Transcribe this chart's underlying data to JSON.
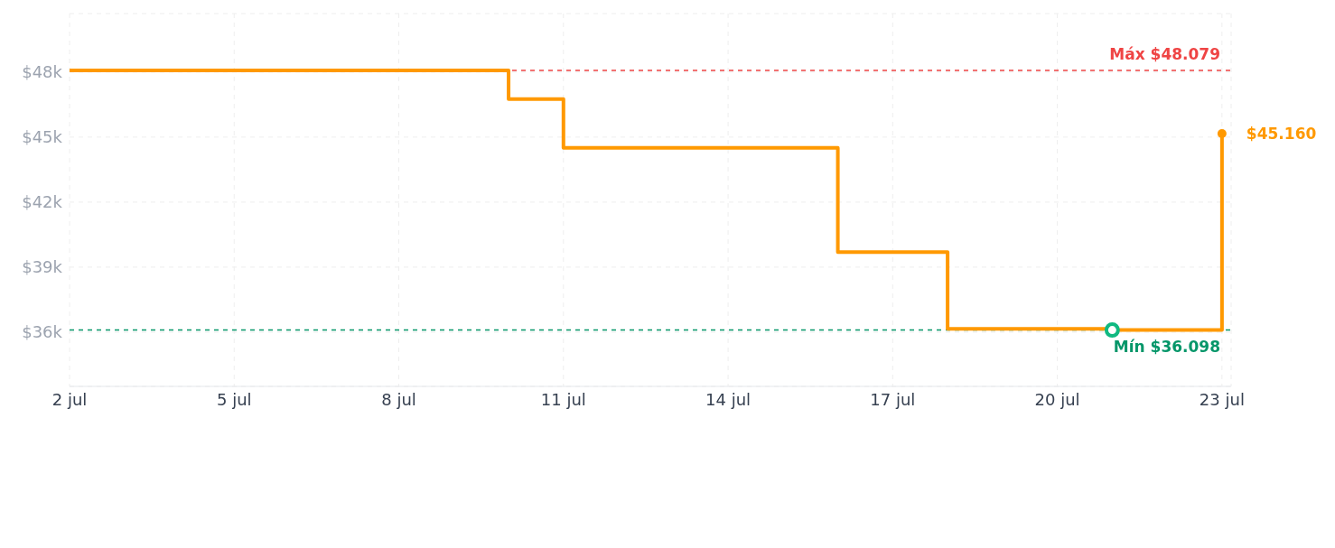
{
  "chart_data": {
    "type": "step",
    "x": [
      "--07-02",
      "--07-10",
      "--07-11",
      "--07-16",
      "--07-18",
      "--07-21",
      "--07-23"
    ],
    "series": [
      {
        "color": "#ff9900",
        "values": [
          48079,
          46750,
          44500,
          39700,
          36150,
          36098,
          45160
        ],
        "marker": "none"
      },
      {
        "type": "scatter",
        "x": [
          "--07-21"
        ],
        "color": "#10b981",
        "values": [
          36098
        ],
        "marker": "circle"
      }
    ],
    "xlim": [
      "--07-02",
      "--07-23T04:00"
    ],
    "xticks": [
      {
        "value": "--07-02",
        "label": "2 jul"
      },
      {
        "value": "--07-05",
        "label": "5 jul"
      },
      {
        "value": "--07-08",
        "label": "8 jul"
      },
      {
        "value": "--07-11",
        "label": "11 jul"
      },
      {
        "value": "--07-14",
        "label": "14 jul"
      },
      {
        "value": "--07-17",
        "label": "17 jul"
      },
      {
        "value": "--07-20",
        "label": "20 jul"
      },
      {
        "value": "--07-23",
        "label": "23 jul"
      }
    ],
    "ylim": [
      33500,
      50700
    ],
    "yticks": [
      {
        "value": 36000,
        "label": "$36k"
      },
      {
        "value": 39000,
        "label": "$39k"
      },
      {
        "value": 42000,
        "label": "$42k"
      },
      {
        "value": 45000,
        "label": "$45k"
      },
      {
        "value": 48000,
        "label": "$48k"
      }
    ],
    "ref_lines": [
      {
        "axis": "y",
        "value": 48079,
        "label": "Máx $48.079",
        "color": "#ef4444",
        "line_style": "dashed"
      },
      {
        "axis": "y",
        "value": 36098,
        "label": "Mín $36.098",
        "color": "#059669",
        "line_style": "dashed"
      }
    ],
    "annotations": [
      {
        "text": "$45.160",
        "x": "--07-23",
        "y": 45160
      }
    ],
    "grid": true,
    "line_style": "solid"
  }
}
